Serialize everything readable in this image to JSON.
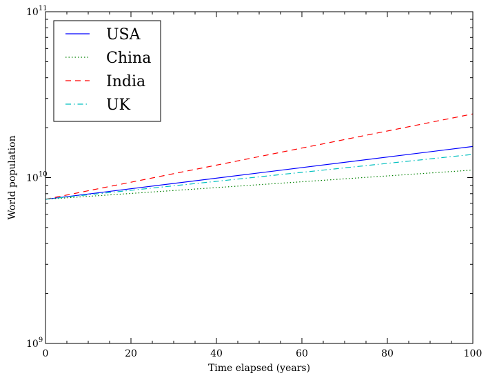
{
  "chart_data": {
    "type": "line",
    "xlabel": "Time elapsed (years)",
    "ylabel": "World population",
    "xlim": [
      0,
      100
    ],
    "ylim": [
      1000000000,
      100000000000
    ],
    "yscale": "log",
    "grid": false,
    "legend_position": "top-left",
    "x_ticks": [
      0,
      20,
      40,
      60,
      80,
      100
    ],
    "x_tick_labels": [
      "0",
      "20",
      "40",
      "60",
      "80",
      "100"
    ],
    "y_ticks": [
      1000000000,
      10000000000,
      100000000000
    ],
    "y_tick_labels": [
      {
        "base": "10",
        "exp": "9"
      },
      {
        "base": "10",
        "exp": "10"
      },
      {
        "base": "10",
        "exp": "11"
      }
    ],
    "x": [
      0,
      100
    ],
    "series": [
      {
        "name": "USA",
        "values": [
          7400000000,
          15400000000
        ],
        "color": "#0000ff",
        "dash": "solid"
      },
      {
        "name": "China",
        "values": [
          7400000000,
          11100000000
        ],
        "color": "#008000",
        "dash": "dotted"
      },
      {
        "name": "India",
        "values": [
          7400000000,
          24200000000
        ],
        "color": "#ff0000",
        "dash": "dashed"
      },
      {
        "name": "UK",
        "values": [
          7400000000,
          13800000000
        ],
        "color": "#00bfbf",
        "dash": "dashdot"
      }
    ]
  }
}
